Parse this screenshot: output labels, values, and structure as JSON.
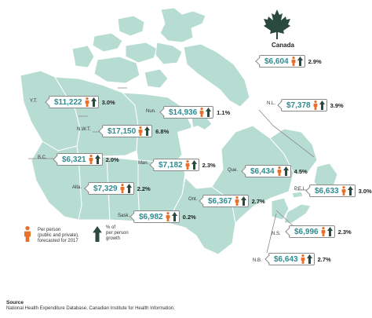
{
  "national": {
    "title": "Canada",
    "amount": "$6,604",
    "growth": "2.9%",
    "icon": "maple-leaf-icon"
  },
  "provinces": [
    {
      "abbr": "Y.T.",
      "amount": "$11,222",
      "growth": "3.0%"
    },
    {
      "abbr": "N.W.T.",
      "amount": "$17,150",
      "growth": "6.8%"
    },
    {
      "abbr": "Nun.",
      "amount": "$14,936",
      "growth": "1.1%"
    },
    {
      "abbr": "B.C.",
      "amount": "$6,321",
      "growth": "2.0%"
    },
    {
      "abbr": "Alta.",
      "amount": "$7,329",
      "growth": "2.2%"
    },
    {
      "abbr": "Sask.",
      "amount": "$6,982",
      "growth": "0.2%"
    },
    {
      "abbr": "Man.",
      "amount": "$7,182",
      "growth": "2.3%"
    },
    {
      "abbr": "Ont.",
      "amount": "$6,367",
      "growth": "2.7%"
    },
    {
      "abbr": "Que.",
      "amount": "$6,434",
      "growth": "4.5%"
    },
    {
      "abbr": "N.L.",
      "amount": "$7,378",
      "growth": "3.9%"
    },
    {
      "abbr": "P.E.I.",
      "amount": "$6,633",
      "growth": "3.0%"
    },
    {
      "abbr": "N.S.",
      "amount": "$6,996",
      "growth": "2.3%"
    },
    {
      "abbr": "N.B.",
      "amount": "$6,643",
      "growth": "2.7%"
    }
  ],
  "legend": {
    "per_person_line1": "Per person",
    "per_person_line2": "(public and private),",
    "per_person_line3": "forecasted for 2017",
    "growth_line1": "% of",
    "growth_line2": "per person",
    "growth_line3": "growth",
    "person_icon": "person-icon",
    "arrow_icon": "up-arrow-icon"
  },
  "source": {
    "title": "Source",
    "text": "National Health Expenditure Database, Canadian Institute for Health Information."
  },
  "colors": {
    "land": "#b7ddd3",
    "borders": "#ffffff",
    "amount_text": "#2e8c91",
    "person_icon": "#e8702a",
    "arrow_icon": "#2a4a40",
    "maple_leaf": "#2a4a40"
  }
}
